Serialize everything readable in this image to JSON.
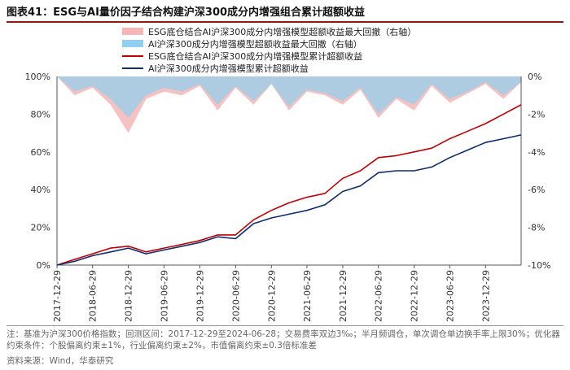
{
  "title": "图表41：ESG与AI量价因子结合构建沪深300成分内增强组合累计超额收益",
  "note": "注：基准为沪深300价格指数；回测区间：2017-12-29至2024-06-28；交易费率双边3‰；半月频调仓，单次调仓单边换手率上限30%；优化器约束条件：个股偏离约束±1%，行业偏离约束±2%，市值偏离约束±0.3倍标准差",
  "source": "资料来源：Wind，华泰研究",
  "chart_data": {
    "type": "line",
    "legend_position": "top-left",
    "x_ticks": [
      "2017-12-29",
      "2018-06-29",
      "2018-12-29",
      "2019-06-29",
      "2019-12-29",
      "2020-06-29",
      "2020-12-29",
      "2021-06-29",
      "2021-12-29",
      "2022-06-29",
      "2022-12-29",
      "2023-06-29",
      "2023-12-29"
    ],
    "left_axis": {
      "min": 0,
      "max": 100,
      "ticks": [
        "0%",
        "20%",
        "40%",
        "60%",
        "80%",
        "100%"
      ]
    },
    "right_axis": {
      "min": -10,
      "max": 0,
      "ticks": [
        "-10%",
        "-8%",
        "-6%",
        "-4%",
        "-2%",
        "0%"
      ]
    },
    "x": [
      "2017-12-29",
      "2018-03-29",
      "2018-06-29",
      "2018-09-29",
      "2018-12-29",
      "2019-03-29",
      "2019-06-29",
      "2019-09-29",
      "2019-12-29",
      "2020-03-29",
      "2020-06-29",
      "2020-09-29",
      "2020-12-29",
      "2021-03-29",
      "2021-06-29",
      "2021-09-29",
      "2021-12-29",
      "2022-03-29",
      "2022-06-29",
      "2022-09-29",
      "2022-12-29",
      "2023-03-29",
      "2023-06-29",
      "2023-09-29",
      "2023-12-29",
      "2024-03-29",
      "2024-06-28"
    ],
    "series": [
      {
        "name": "ESG底仓结合AI沪深300成分内增强模型超额收益最大回撤（右轴）",
        "axis": "right",
        "style": "area",
        "color": "#f4b6b6",
        "values": [
          0,
          -1.0,
          -0.6,
          -1.5,
          -3.0,
          -1.2,
          -0.8,
          -1.0,
          -0.5,
          -1.8,
          -0.6,
          -1.5,
          -0.4,
          -1.8,
          -0.8,
          -1.0,
          -1.5,
          -0.7,
          -2.2,
          -1.2,
          -1.8,
          -0.5,
          -1.4,
          -0.9,
          -0.4,
          -1.2,
          -0.3
        ]
      },
      {
        "name": "AI沪深300成分内增强模型超额收益最大回撤（右轴）",
        "axis": "right",
        "style": "area",
        "color": "#8fd0f0",
        "values": [
          0,
          -0.8,
          -0.5,
          -1.2,
          -2.2,
          -1.0,
          -0.6,
          -0.8,
          -0.4,
          -1.5,
          -0.5,
          -1.3,
          -0.4,
          -1.6,
          -0.7,
          -0.9,
          -1.3,
          -0.6,
          -2.0,
          -1.1,
          -1.5,
          -0.4,
          -1.2,
          -0.8,
          -0.3,
          -1.0,
          -0.3
        ]
      },
      {
        "name": "ESG底仓结合AI沪深300成分内增强模型累计超额收益",
        "axis": "left",
        "style": "line",
        "color": "#c00000",
        "values": [
          0,
          3,
          6,
          9,
          10,
          7,
          9,
          11,
          13,
          16,
          16,
          24,
          29,
          33,
          36,
          38,
          46,
          50,
          57,
          58,
          60,
          62,
          67,
          71,
          75,
          80,
          85
        ]
      },
      {
        "name": "AI沪深300成分内增强模型累计超额收益",
        "axis": "left",
        "style": "line",
        "color": "#0d2c6c",
        "values": [
          0,
          2,
          5,
          7,
          9,
          6,
          8,
          10,
          12,
          15,
          14,
          22,
          25,
          27,
          29,
          32,
          39,
          42,
          49,
          50,
          50,
          52,
          57,
          61,
          65,
          67,
          69
        ]
      }
    ]
  }
}
